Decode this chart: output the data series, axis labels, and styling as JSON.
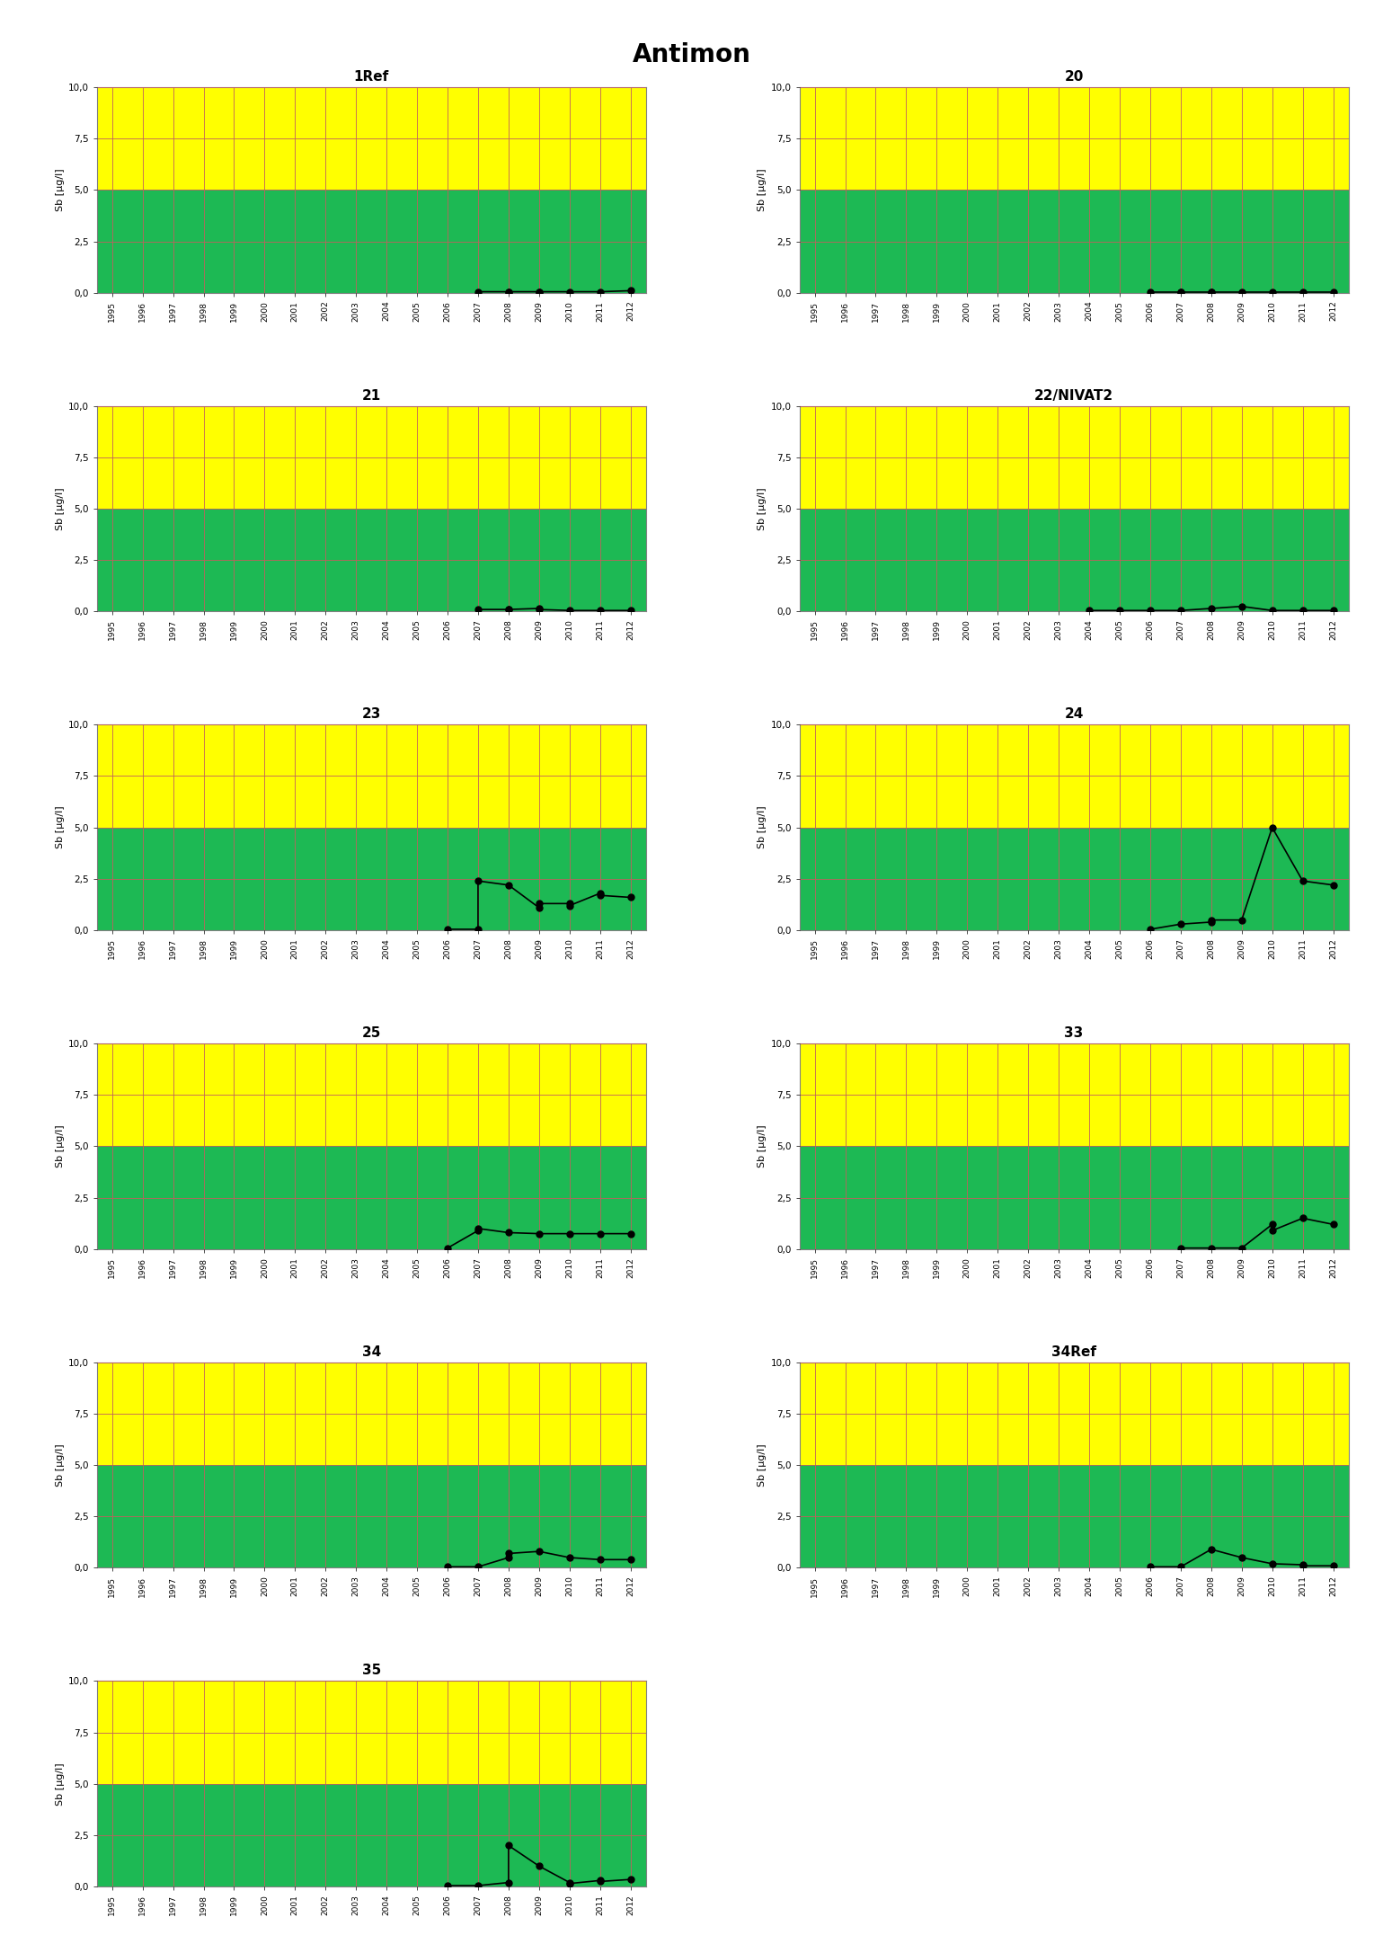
{
  "title": "Antimon",
  "ylabel": "Sb [µg/l]",
  "ylim": [
    0,
    10
  ],
  "yticks": [
    0.0,
    2.5,
    5.0,
    7.5,
    10.0
  ],
  "ytick_labels": [
    "0,0",
    "2,5",
    "5,0",
    "7,5",
    "10,0"
  ],
  "xlim": [
    1994.5,
    2012.5
  ],
  "xticks": [
    1995,
    1996,
    1997,
    1998,
    1999,
    2000,
    2001,
    2002,
    2003,
    2004,
    2005,
    2006,
    2007,
    2008,
    2009,
    2010,
    2011,
    2012
  ],
  "green_threshold": 5.0,
  "green_color": "#1db954",
  "yellow_color": "#ffff00",
  "grid_color": "#c0605e",
  "subplots": [
    {
      "title": "1Ref",
      "data_x": [
        2007,
        2008,
        2008,
        2009,
        2009,
        2010,
        2011,
        2012
      ],
      "data_y": [
        0.05,
        0.05,
        0.05,
        0.05,
        0.05,
        0.05,
        0.05,
        0.1
      ]
    },
    {
      "title": "20",
      "data_x": [
        2006,
        2007,
        2007,
        2008,
        2008,
        2009,
        2010,
        2011,
        2012
      ],
      "data_y": [
        0.05,
        0.05,
        0.05,
        0.05,
        0.05,
        0.05,
        0.05,
        0.05,
        0.05
      ]
    },
    {
      "title": "21",
      "data_x": [
        2007,
        2008,
        2008,
        2009,
        2009,
        2010,
        2011,
        2012
      ],
      "data_y": [
        0.1,
        0.1,
        0.1,
        0.15,
        0.1,
        0.05,
        0.05,
        0.05
      ]
    },
    {
      "title": "22/NIVAT2",
      "data_x": [
        2004,
        2005,
        2006,
        2007,
        2008,
        2009,
        2010,
        2011,
        2012
      ],
      "data_y": [
        0.05,
        0.05,
        0.05,
        0.05,
        0.15,
        0.25,
        0.05,
        0.05,
        0.05
      ]
    },
    {
      "title": "23",
      "data_x": [
        2006,
        2007,
        2007,
        2008,
        2009,
        2009,
        2010,
        2010,
        2011,
        2011,
        2012
      ],
      "data_y": [
        0.05,
        0.05,
        2.4,
        2.2,
        1.1,
        1.3,
        1.3,
        1.2,
        1.8,
        1.7,
        1.6
      ]
    },
    {
      "title": "24",
      "data_x": [
        2006,
        2007,
        2008,
        2008,
        2009,
        2010,
        2011,
        2012
      ],
      "data_y": [
        0.05,
        0.3,
        0.4,
        0.5,
        0.5,
        5.0,
        2.4,
        2.2
      ]
    },
    {
      "title": "25",
      "data_x": [
        2006,
        2007,
        2007,
        2008,
        2009,
        2010,
        2011,
        2012
      ],
      "data_y": [
        0.05,
        0.9,
        1.0,
        0.8,
        0.75,
        0.75,
        0.75,
        0.75
      ]
    },
    {
      "title": "33",
      "data_x": [
        2007,
        2008,
        2009,
        2010,
        2010,
        2011,
        2012
      ],
      "data_y": [
        0.05,
        0.05,
        0.05,
        1.2,
        0.9,
        1.5,
        1.2
      ]
    },
    {
      "title": "34",
      "data_x": [
        2006,
        2007,
        2008,
        2008,
        2009,
        2010,
        2011,
        2012
      ],
      "data_y": [
        0.05,
        0.05,
        0.5,
        0.7,
        0.8,
        0.5,
        0.4,
        0.4
      ]
    },
    {
      "title": "34Ref",
      "data_x": [
        2006,
        2007,
        2008,
        2009,
        2010,
        2011,
        2011,
        2012
      ],
      "data_y": [
        0.05,
        0.05,
        0.9,
        0.5,
        0.2,
        0.15,
        0.1,
        0.1
      ]
    },
    {
      "title": "35",
      "data_x": [
        2006,
        2007,
        2008,
        2008,
        2009,
        2010,
        2010,
        2011,
        2011,
        2012
      ],
      "data_y": [
        0.05,
        0.05,
        0.2,
        2.0,
        1.0,
        0.2,
        0.15,
        0.3,
        0.25,
        0.35
      ]
    }
  ]
}
